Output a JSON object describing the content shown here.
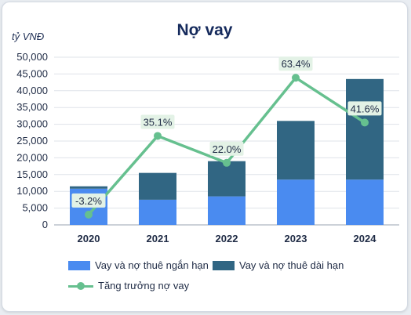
{
  "chart_data": {
    "type": "bar",
    "title": "Nợ vay",
    "ylabel": "tỷ VNĐ",
    "categories": [
      "2020",
      "2021",
      "2022",
      "2023",
      "2024"
    ],
    "ylim": [
      0,
      50000
    ],
    "yticks": [
      "50,000",
      "45,000",
      "40,000",
      "35,000",
      "30,000",
      "25,000",
      "20,000",
      "15,000",
      "10,000",
      "5,000",
      "0"
    ],
    "grid": true,
    "stacked": true,
    "legend_position": "bottom",
    "series": [
      {
        "name": "Vay và nợ thuê ngắn hạn",
        "type": "bar",
        "color": "#4a8bf0",
        "values": [
          10800,
          7500,
          8500,
          13500,
          13500
        ]
      },
      {
        "name": "Vay và nợ thuê dài hạn",
        "type": "bar",
        "color": "#316683",
        "values": [
          700,
          8000,
          10500,
          17500,
          30000
        ]
      },
      {
        "name": "Tăng trưởng nợ vay",
        "type": "line",
        "color": "#66c08f",
        "values": [
          -3.2,
          35.1,
          22.0,
          63.4,
          41.6
        ],
        "labels": [
          "-3.2%",
          "35.1%",
          "22.0%",
          "63.4%",
          "41.6%"
        ]
      }
    ]
  }
}
